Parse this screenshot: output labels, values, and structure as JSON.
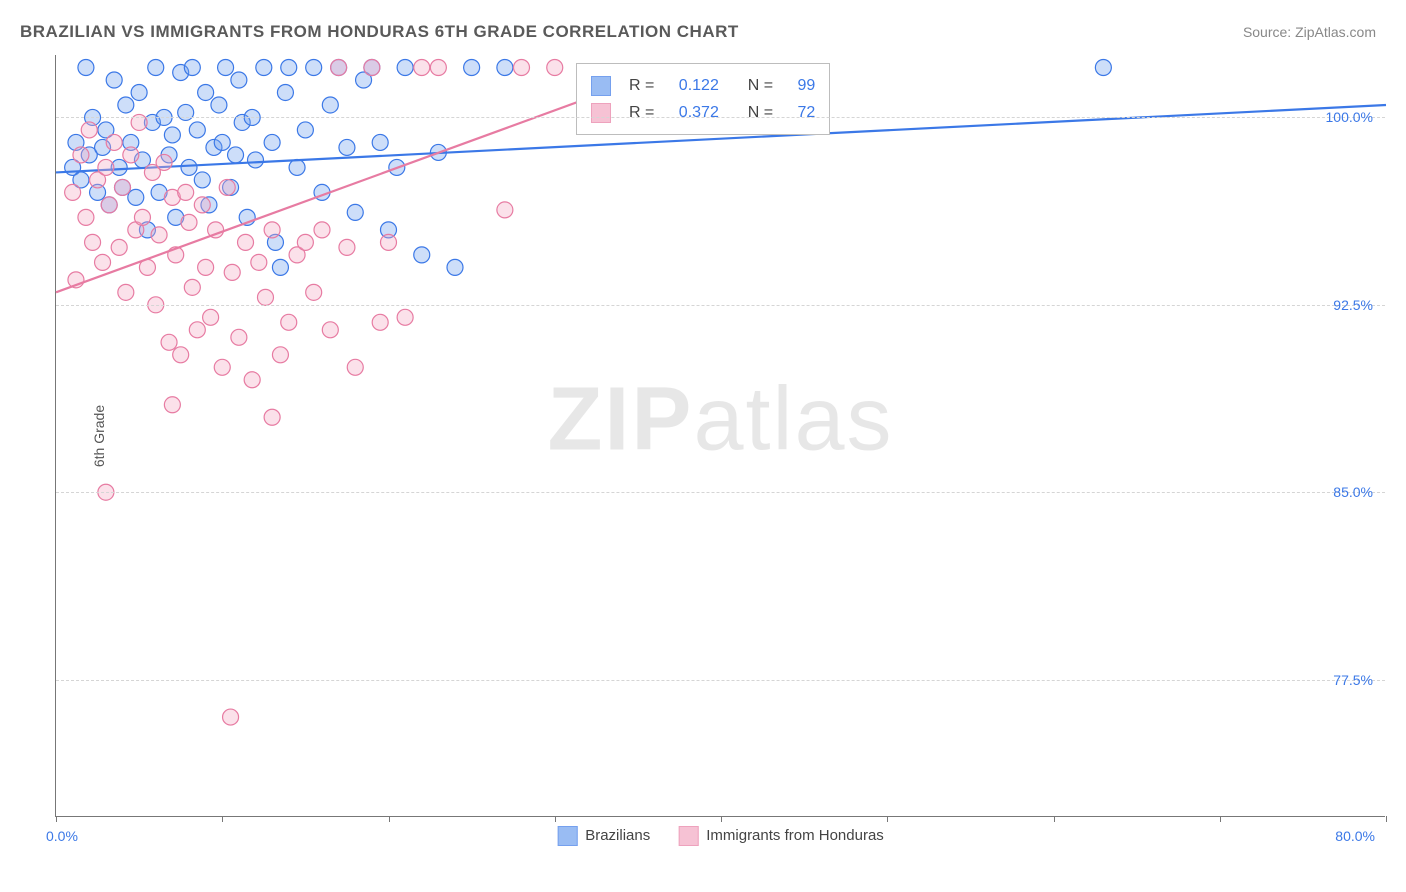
{
  "title": "BRAZILIAN VS IMMIGRANTS FROM HONDURAS 6TH GRADE CORRELATION CHART",
  "source": "Source: ZipAtlas.com",
  "ylabel": "6th Grade",
  "watermark_bold": "ZIP",
  "watermark_light": "atlas",
  "chart": {
    "type": "scatter",
    "background_color": "#ffffff",
    "grid_color": "#d5d5d5",
    "xlim": [
      0.0,
      80.0
    ],
    "ylim": [
      72.0,
      102.5
    ],
    "xtick_positions": [
      0,
      10,
      20,
      30,
      40,
      50,
      60,
      70,
      80
    ],
    "xtick_labels_shown": {
      "min": "0.0%",
      "max": "80.0%"
    },
    "ytick_positions": [
      77.5,
      85.0,
      92.5,
      100.0
    ],
    "ytick_labels": [
      "77.5%",
      "85.0%",
      "92.5%",
      "100.0%"
    ],
    "marker_radius": 8,
    "marker_fill_opacity": 0.35,
    "marker_stroke_width": 1.2,
    "line_width": 2.2,
    "series": [
      {
        "name": "Brazilians",
        "color_stroke": "#3b78e7",
        "color_fill": "#6fa0ef",
        "corr_r": "0.122",
        "corr_n": "99",
        "regression": {
          "x1": 0,
          "y1": 97.8,
          "x2": 80,
          "y2": 100.5
        },
        "points": [
          [
            1.0,
            98.0
          ],
          [
            1.2,
            99.0
          ],
          [
            1.5,
            97.5
          ],
          [
            1.8,
            102.0
          ],
          [
            2.0,
            98.5
          ],
          [
            2.2,
            100.0
          ],
          [
            2.5,
            97.0
          ],
          [
            2.8,
            98.8
          ],
          [
            3.0,
            99.5
          ],
          [
            3.2,
            96.5
          ],
          [
            3.5,
            101.5
          ],
          [
            3.8,
            98.0
          ],
          [
            4.0,
            97.2
          ],
          [
            4.2,
            100.5
          ],
          [
            4.5,
            99.0
          ],
          [
            4.8,
            96.8
          ],
          [
            5.0,
            101.0
          ],
          [
            5.2,
            98.3
          ],
          [
            5.5,
            95.5
          ],
          [
            5.8,
            99.8
          ],
          [
            6.0,
            102.0
          ],
          [
            6.2,
            97.0
          ],
          [
            6.5,
            100.0
          ],
          [
            6.8,
            98.5
          ],
          [
            7.0,
            99.3
          ],
          [
            7.2,
            96.0
          ],
          [
            7.5,
            101.8
          ],
          [
            7.8,
            100.2
          ],
          [
            8.0,
            98.0
          ],
          [
            8.2,
            102.0
          ],
          [
            8.5,
            99.5
          ],
          [
            8.8,
            97.5
          ],
          [
            9.0,
            101.0
          ],
          [
            9.2,
            96.5
          ],
          [
            9.5,
            98.8
          ],
          [
            9.8,
            100.5
          ],
          [
            10.0,
            99.0
          ],
          [
            10.2,
            102.0
          ],
          [
            10.5,
            97.2
          ],
          [
            10.8,
            98.5
          ],
          [
            11.0,
            101.5
          ],
          [
            11.2,
            99.8
          ],
          [
            11.5,
            96.0
          ],
          [
            11.8,
            100.0
          ],
          [
            12.0,
            98.3
          ],
          [
            12.5,
            102.0
          ],
          [
            13.0,
            99.0
          ],
          [
            13.2,
            95.0
          ],
          [
            13.5,
            94.0
          ],
          [
            13.8,
            101.0
          ],
          [
            14.0,
            102.0
          ],
          [
            14.5,
            98.0
          ],
          [
            15.0,
            99.5
          ],
          [
            15.5,
            102.0
          ],
          [
            16.0,
            97.0
          ],
          [
            16.5,
            100.5
          ],
          [
            17.0,
            102.0
          ],
          [
            17.5,
            98.8
          ],
          [
            18.0,
            96.2
          ],
          [
            18.5,
            101.5
          ],
          [
            19.0,
            102.0
          ],
          [
            19.5,
            99.0
          ],
          [
            20.0,
            95.5
          ],
          [
            20.5,
            98.0
          ],
          [
            21.0,
            102.0
          ],
          [
            22.0,
            94.5
          ],
          [
            23.0,
            98.6
          ],
          [
            24.0,
            94.0
          ],
          [
            25.0,
            102.0
          ],
          [
            27.0,
            102.0
          ],
          [
            63.0,
            102.0
          ]
        ]
      },
      {
        "name": "Immigrants from Honduras",
        "color_stroke": "#e77ba2",
        "color_fill": "#f3a9c2",
        "corr_r": "0.372",
        "corr_n": "72",
        "regression": {
          "x1": 0,
          "y1": 93.0,
          "x2": 35,
          "y2": 101.5
        },
        "points": [
          [
            1.0,
            97.0
          ],
          [
            1.2,
            93.5
          ],
          [
            1.5,
            98.5
          ],
          [
            1.8,
            96.0
          ],
          [
            2.0,
            99.5
          ],
          [
            2.2,
            95.0
          ],
          [
            2.5,
            97.5
          ],
          [
            2.8,
            94.2
          ],
          [
            3.0,
            98.0
          ],
          [
            3.2,
            96.5
          ],
          [
            3.5,
            99.0
          ],
          [
            3.8,
            94.8
          ],
          [
            4.0,
            97.2
          ],
          [
            4.2,
            93.0
          ],
          [
            4.5,
            98.5
          ],
          [
            4.8,
            95.5
          ],
          [
            5.0,
            99.8
          ],
          [
            5.2,
            96.0
          ],
          [
            5.5,
            94.0
          ],
          [
            5.8,
            97.8
          ],
          [
            6.0,
            92.5
          ],
          [
            6.2,
            95.3
          ],
          [
            6.5,
            98.2
          ],
          [
            6.8,
            91.0
          ],
          [
            7.0,
            96.8
          ],
          [
            7.2,
            94.5
          ],
          [
            7.5,
            90.5
          ],
          [
            7.8,
            97.0
          ],
          [
            8.0,
            95.8
          ],
          [
            8.2,
            93.2
          ],
          [
            8.5,
            91.5
          ],
          [
            8.8,
            96.5
          ],
          [
            9.0,
            94.0
          ],
          [
            9.3,
            92.0
          ],
          [
            9.6,
            95.5
          ],
          [
            10.0,
            90.0
          ],
          [
            10.3,
            97.2
          ],
          [
            10.6,
            93.8
          ],
          [
            11.0,
            91.2
          ],
          [
            11.4,
            95.0
          ],
          [
            11.8,
            89.5
          ],
          [
            12.2,
            94.2
          ],
          [
            12.6,
            92.8
          ],
          [
            13.0,
            95.5
          ],
          [
            13.5,
            90.5
          ],
          [
            14.0,
            91.8
          ],
          [
            14.5,
            94.5
          ],
          [
            15.0,
            95.0
          ],
          [
            15.5,
            93.0
          ],
          [
            16.0,
            95.5
          ],
          [
            16.5,
            91.5
          ],
          [
            17.0,
            102.0
          ],
          [
            17.5,
            94.8
          ],
          [
            18.0,
            90.0
          ],
          [
            19.0,
            102.0
          ],
          [
            19.5,
            91.8
          ],
          [
            20.0,
            95.0
          ],
          [
            21.0,
            92.0
          ],
          [
            22.0,
            102.0
          ],
          [
            23.0,
            102.0
          ],
          [
            27.0,
            96.3
          ],
          [
            28.0,
            102.0
          ],
          [
            30.0,
            102.0
          ],
          [
            3.0,
            85.0
          ],
          [
            10.5,
            76.0
          ],
          [
            13.0,
            88.0
          ],
          [
            7.0,
            88.5
          ]
        ]
      }
    ]
  },
  "legend": {
    "series1": "Brazilians",
    "series2": "Immigrants from Honduras"
  },
  "corr_labels": {
    "R": "R =",
    "N": "N ="
  }
}
